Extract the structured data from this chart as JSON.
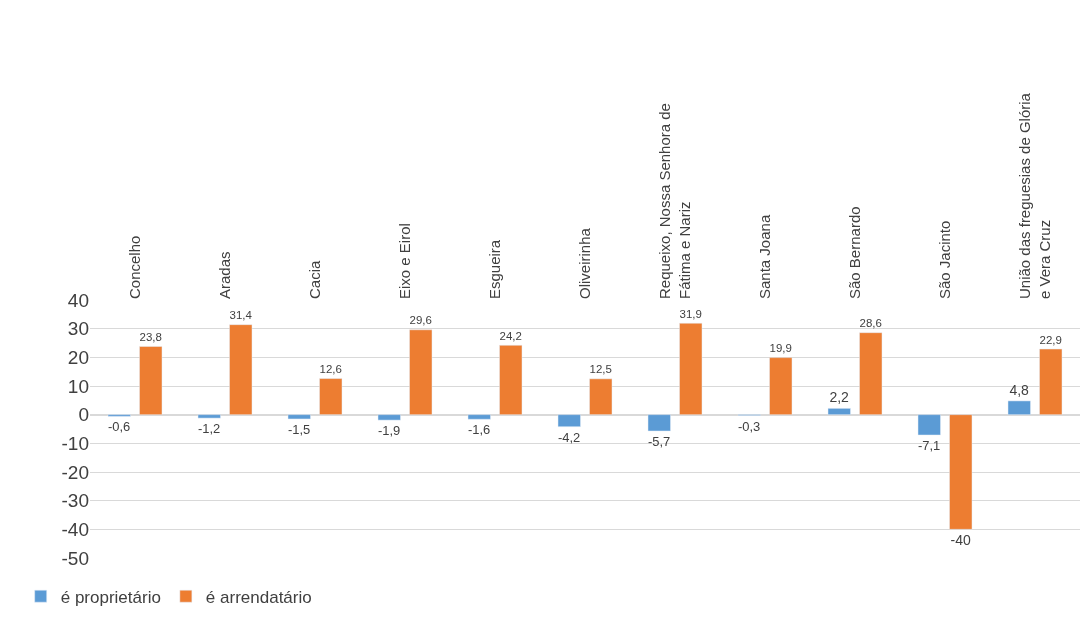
{
  "chart_data": {
    "type": "bar",
    "categories": [
      "Concelho",
      "Aradas",
      "Cacia",
      "Eixo e Eirol",
      "Esgueira",
      "Oliveirinha",
      "Requeixo, Nossa Senhora de\nFátima e Nariz",
      "Santa Joana",
      "São Bernardo",
      "São Jacinto",
      "União das freguesias de Glória\ne Vera Cruz"
    ],
    "series": [
      {
        "name": "é proprietário",
        "color": "#5b9bd5",
        "values": [
          -0.6,
          -1.2,
          -1.5,
          -1.9,
          -1.6,
          -4.2,
          -5.7,
          -0.3,
          2.2,
          -7.1,
          4.8
        ],
        "value_labels": [
          "-0,6",
          "-1,2",
          "-1,5",
          "-1,9",
          "-1,6",
          "-4,2",
          "-5,7",
          "-0,3",
          "2,2",
          "-7,1",
          "4,8"
        ]
      },
      {
        "name": "é arrendatário",
        "color": "#ed7d31",
        "values": [
          23.8,
          31.4,
          12.6,
          29.6,
          24.2,
          12.5,
          31.9,
          19.9,
          28.6,
          -40,
          22.9
        ],
        "value_labels": [
          "23,8",
          "31,4",
          "12,6",
          "29,6",
          "24,2",
          "12,5",
          "31,9",
          "19,9",
          "28,6",
          "-40",
          "22,9"
        ]
      }
    ],
    "ylim": [
      -50,
      40
    ],
    "yticks": [
      -50,
      -40,
      -30,
      -20,
      -10,
      0,
      10,
      20,
      30,
      40
    ],
    "grid": "y",
    "legend": "bottom left"
  }
}
